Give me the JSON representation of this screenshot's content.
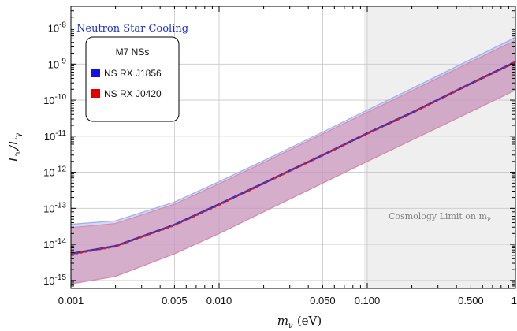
{
  "chart_data": {
    "type": "line",
    "title": "",
    "xlabel": "m_ν (eV)",
    "ylabel": "L_ν/L_γ",
    "x_scale": "log",
    "y_scale": "log",
    "xlim": [
      0.001,
      1
    ],
    "ylim": [
      6e-16,
      4e-08
    ],
    "grid": true,
    "x_ticks": [
      {
        "value": 0.001,
        "label": "0.001"
      },
      {
        "value": 0.005,
        "label": "0.005"
      },
      {
        "value": 0.01,
        "label": "0.010"
      },
      {
        "value": 0.05,
        "label": "0.050"
      },
      {
        "value": 0.1,
        "label": "0.100"
      },
      {
        "value": 0.5,
        "label": "0.500"
      },
      {
        "value": 1,
        "label": "1"
      }
    ],
    "y_ticks": [
      {
        "value": 1e-15,
        "exp": "-15"
      },
      {
        "value": 1e-14,
        "exp": "-14"
      },
      {
        "value": 1e-13,
        "exp": "-13"
      },
      {
        "value": 1e-12,
        "exp": "-12"
      },
      {
        "value": 1e-11,
        "exp": "-11"
      },
      {
        "value": 1e-10,
        "exp": "-10"
      },
      {
        "value": 1e-09,
        "exp": "-9"
      },
      {
        "value": 1e-08,
        "exp": "-8"
      }
    ],
    "y_tick_base": "10",
    "panel_label": "Neutron Star Cooling",
    "legend": {
      "title": "M7 NSs",
      "placement": "top-left",
      "entries": [
        "NS RX J1856",
        "NS RX J0420"
      ]
    },
    "shaded_region": {
      "label": "Cosmology Limit on m_ν",
      "x_start": 0.095,
      "x_end": 1
    },
    "series": [
      {
        "name": "NS RX J1856",
        "color": "#1f35d6",
        "band_color": "#9aaef2",
        "x": [
          0.001,
          0.002,
          0.005,
          0.01,
          0.02,
          0.05,
          0.1,
          0.2,
          0.5,
          1
        ],
        "values": [
          5.5e-15,
          9e-15,
          3.5e-14,
          1.3e-13,
          5e-13,
          3e-12,
          1.2e-11,
          4.5e-11,
          2.9e-10,
          1.15e-09
        ],
        "band_upper": [
          3.6e-14,
          4.5e-14,
          1.5e-13,
          5.5e-13,
          2.1e-12,
          1.3e-11,
          5.3e-11,
          2.1e-10,
          1.35e-09,
          5.5e-09
        ],
        "band_lower": [
          8e-16,
          1.3e-15,
          5.5e-15,
          2e-14,
          8e-14,
          5e-13,
          2e-12,
          7.8e-12,
          4.8e-11,
          1.9e-10
        ]
      },
      {
        "name": "NS RX J0420",
        "color": "#e01b1b",
        "band_color": "#d98aa8",
        "x": [
          0.001,
          0.002,
          0.005,
          0.01,
          0.02,
          0.05,
          0.1,
          0.2,
          0.5,
          1
        ],
        "values": [
          5.3e-15,
          8.8e-15,
          3.4e-14,
          1.25e-13,
          4.9e-13,
          2.95e-12,
          1.18e-11,
          4.4e-11,
          2.85e-10,
          1.12e-09
        ],
        "band_upper": [
          2.9e-14,
          3.8e-14,
          1.3e-13,
          4.8e-13,
          1.85e-12,
          1.15e-11,
          4.6e-11,
          1.8e-10,
          1.15e-09,
          4.6e-09
        ],
        "band_lower": [
          8e-16,
          1.3e-15,
          5.5e-15,
          2e-14,
          8e-14,
          5e-13,
          2e-12,
          7.8e-12,
          4.8e-11,
          1.9e-10
        ]
      }
    ]
  }
}
